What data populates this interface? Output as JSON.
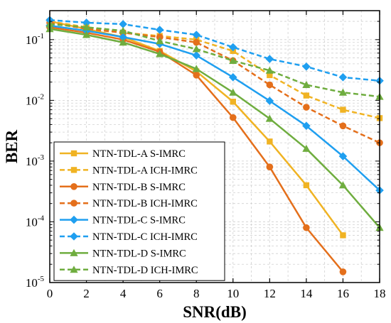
{
  "chart_data": {
    "type": "line",
    "title": "",
    "xlabel": "SNR(dB)",
    "ylabel": "BER",
    "x_scale": "linear",
    "y_scale": "log",
    "xlim": [
      0,
      18
    ],
    "ylim": [
      1e-05,
      0.3
    ],
    "x_ticks": [
      0,
      2,
      4,
      6,
      8,
      10,
      12,
      14,
      16,
      18
    ],
    "y_ticks": [
      {
        "value": 1e-05,
        "base": "10",
        "exp": "-5"
      },
      {
        "value": 0.0001,
        "base": "10",
        "exp": "-4"
      },
      {
        "value": 0.001,
        "base": "10",
        "exp": "-3"
      },
      {
        "value": 0.01,
        "base": "10",
        "exp": "-2"
      },
      {
        "value": 0.1,
        "base": "10",
        "exp": "-1"
      }
    ],
    "grid": true,
    "legend_position": "bottom-left",
    "series": [
      {
        "name": "NTN-TDL-A S-IMRC",
        "color": "#f0b323",
        "dash": "solid",
        "marker": "square",
        "x": [
          0,
          2,
          4,
          6,
          8,
          10,
          12,
          14,
          16
        ],
        "y": [
          0.2,
          0.15,
          0.11,
          0.065,
          0.03,
          0.0095,
          0.0021,
          0.0004,
          6e-05
        ]
      },
      {
        "name": "NTN-TDL-A ICH-IMRC",
        "color": "#f0b323",
        "dash": "dashed",
        "marker": "square",
        "x": [
          0,
          2,
          4,
          6,
          8,
          10,
          12,
          14,
          16,
          18
        ],
        "y": [
          0.2,
          0.16,
          0.13,
          0.115,
          0.1,
          0.065,
          0.026,
          0.012,
          0.007,
          0.0051
        ]
      },
      {
        "name": "NTN-TDL-B S-IMRC",
        "color": "#e46f1b",
        "dash": "solid",
        "marker": "circle",
        "x": [
          0,
          2,
          4,
          6,
          8,
          10,
          12,
          14,
          16
        ],
        "y": [
          0.16,
          0.13,
          0.1,
          0.063,
          0.026,
          0.0052,
          0.0008,
          8e-05,
          1.5e-05
        ]
      },
      {
        "name": "NTN-TDL-B ICH-IMRC",
        "color": "#e46f1b",
        "dash": "dashed",
        "marker": "circle",
        "x": [
          0,
          2,
          4,
          6,
          8,
          10,
          12,
          14,
          16,
          18
        ],
        "y": [
          0.19,
          0.15,
          0.13,
          0.11,
          0.09,
          0.045,
          0.018,
          0.0077,
          0.0038,
          0.002
        ]
      },
      {
        "name": "NTN-TDL-C S-IMRC",
        "color": "#1f9ff0",
        "dash": "solid",
        "marker": "diamond",
        "x": [
          0,
          2,
          4,
          6,
          8,
          10,
          12,
          14,
          16,
          18
        ],
        "y": [
          0.17,
          0.14,
          0.11,
          0.085,
          0.055,
          0.024,
          0.0098,
          0.0038,
          0.0012,
          0.00033
        ]
      },
      {
        "name": "NTN-TDL-C ICH-IMRC",
        "color": "#1f9ff0",
        "dash": "dashed",
        "marker": "diamond",
        "x": [
          0,
          2,
          4,
          6,
          8,
          10,
          12,
          14,
          16,
          18
        ],
        "y": [
          0.21,
          0.19,
          0.18,
          0.145,
          0.12,
          0.075,
          0.048,
          0.036,
          0.024,
          0.021
        ]
      },
      {
        "name": "NTN-TDL-D S-IMRC",
        "color": "#6fad3f",
        "dash": "solid",
        "marker": "triangle",
        "x": [
          0,
          2,
          4,
          6,
          8,
          10,
          12,
          14,
          16,
          18
        ],
        "y": [
          0.15,
          0.12,
          0.09,
          0.058,
          0.033,
          0.0135,
          0.005,
          0.0016,
          0.0004,
          8e-05
        ]
      },
      {
        "name": "NTN-TDL-D ICH-IMRC",
        "color": "#6fad3f",
        "dash": "dashed",
        "marker": "triangle",
        "x": [
          0,
          2,
          4,
          6,
          8,
          10,
          12,
          14,
          16,
          18
        ],
        "y": [
          0.18,
          0.16,
          0.14,
          0.095,
          0.07,
          0.045,
          0.031,
          0.018,
          0.0135,
          0.0115
        ]
      }
    ]
  }
}
